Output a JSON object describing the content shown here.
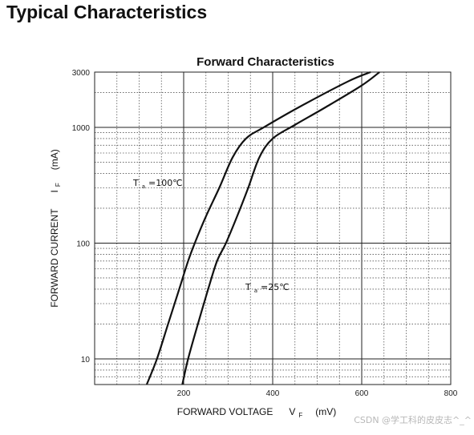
{
  "page": {
    "heading": "Typical Characteristics",
    "watermark": "CSDN @学工科的皮皮志^_^"
  },
  "chart_data": {
    "type": "line",
    "title": "Forward Characteristics",
    "xlabel": {
      "text": "FORWARD VOLTAGE",
      "symbol": "V",
      "subscript": "F",
      "unit": "(mV)"
    },
    "ylabel": {
      "text": "FORWARD CURRENT",
      "symbol": "I",
      "subscript": "F",
      "unit": "(mA)"
    },
    "xlim": [
      0,
      800
    ],
    "ylim": [
      6,
      3000
    ],
    "yscale": "log",
    "xticks": [
      200,
      400,
      600,
      800
    ],
    "xtick_labels": [
      "200",
      "400",
      "600",
      "800"
    ],
    "yticks": [
      10,
      100,
      1000,
      3000
    ],
    "ytick_labels": [
      "10",
      "100",
      "1000",
      "3000"
    ],
    "grid": {
      "major": "solid",
      "minor": "dotted"
    },
    "series": [
      {
        "label": "Ta=100℃",
        "points": [
          [
            117,
            6
          ],
          [
            140,
            10
          ],
          [
            165,
            20
          ],
          [
            190,
            40
          ],
          [
            210,
            70
          ],
          [
            225,
            100
          ],
          [
            250,
            170
          ],
          [
            280,
            300
          ],
          [
            310,
            550
          ],
          [
            340,
            800
          ],
          [
            380,
            1000
          ],
          [
            460,
            1500
          ],
          [
            570,
            2500
          ],
          [
            620,
            3000
          ]
        ]
      },
      {
        "label": "Ta=25℃",
        "points": [
          [
            197,
            6
          ],
          [
            210,
            10
          ],
          [
            232,
            20
          ],
          [
            255,
            40
          ],
          [
            275,
            70
          ],
          [
            295,
            100
          ],
          [
            320,
            170
          ],
          [
            345,
            300
          ],
          [
            370,
            550
          ],
          [
            400,
            800
          ],
          [
            450,
            1050
          ],
          [
            520,
            1500
          ],
          [
            600,
            2300
          ],
          [
            640,
            3000
          ]
        ]
      }
    ],
    "annotations": [
      {
        "symbol": "T",
        "subscript": "a",
        "text": "=100℃",
        "series": 0
      },
      {
        "symbol": "T",
        "subscript": "a",
        "text": "=25℃",
        "series": 1
      }
    ]
  }
}
